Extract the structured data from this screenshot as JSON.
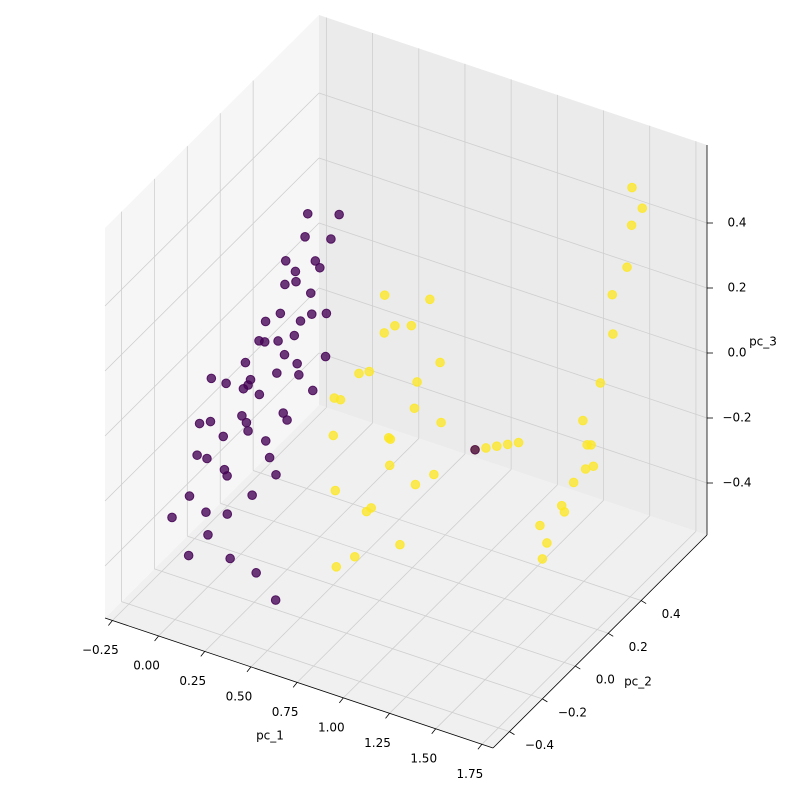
{
  "chart_data": {
    "type": "scatter3d",
    "xlabel": "pc_1",
    "ylabel": "pc_2",
    "zlabel": "pc_3",
    "xlim": [
      -0.29,
      1.81
    ],
    "ylim": [
      -0.5,
      0.8
    ],
    "zlim": [
      -0.56,
      0.64
    ],
    "xticks": [
      {
        "value": -0.25,
        "label": "−0.25"
      },
      {
        "value": 0,
        "label": "0.00"
      },
      0.25,
      {
        "value": 0.5,
        "label": "0.50"
      },
      0.75,
      {
        "value": 1,
        "label": "1.00"
      },
      1.25,
      {
        "value": 1.5,
        "label": "1.50"
      },
      1.75
    ],
    "yticks": [
      {
        "value": -0.4,
        "label": "−0.4"
      },
      {
        "value": -0.2,
        "label": "−0.2"
      },
      {
        "value": 0,
        "label": "0.0"
      },
      0.2,
      0.4
    ],
    "zticks": [
      {
        "value": -0.4,
        "label": "−0.4"
      },
      {
        "value": -0.2,
        "label": "−0.2"
      },
      {
        "value": 0,
        "label": "0.0"
      },
      0.2,
      0.4
    ],
    "grid": true,
    "series": [
      {
        "color": "#440154",
        "x": [
          -0.1,
          -0.05,
          0.0,
          0.05,
          0.1,
          0.15,
          0.2,
          0.25,
          -0.12,
          -0.08,
          -0.02,
          0.04,
          0.08,
          0.12,
          0.18,
          0.22,
          -0.15,
          -0.1,
          -0.05,
          0.0,
          0.06,
          0.1,
          0.15,
          0.2,
          0.25,
          0.28,
          -0.14,
          -0.08,
          0.02,
          0.08,
          0.14,
          0.18,
          0.0,
          0.06,
          0.12,
          -0.06,
          -0.12,
          0.03,
          0.09,
          0.16,
          0.24,
          0.3,
          -0.03,
          0.07,
          0.13,
          0.2,
          -0.09,
          0.01,
          0.26,
          0.11,
          -0.13,
          0.04,
          0.19,
          0.22,
          0.05,
          -0.16,
          0.35,
          0.5,
          1.0
        ],
        "y": [
          -0.2,
          -0.15,
          -0.1,
          -0.05,
          0.0,
          0.05,
          0.1,
          0.15,
          -0.05,
          0.0,
          0.05,
          0.1,
          0.15,
          0.2,
          0.25,
          0.3,
          -0.25,
          -0.1,
          0.1,
          0.15,
          0.2,
          0.25,
          -0.1,
          -0.05,
          0.0,
          0.2,
          0.05,
          0.2,
          0.25,
          0.3,
          0.1,
          0.15,
          -0.2,
          -0.15,
          -0.2,
          -0.25,
          0.15,
          0.0,
          0.05,
          0.3,
          0.25,
          0.1,
          -0.05,
          -0.02,
          0.08,
          0.2,
          -0.15,
          0.32,
          0.05,
          -0.08,
          -0.12,
          0.22,
          0.0,
          0.35,
          0.35,
          0.0,
          -0.3,
          -0.35,
          0.3
        ],
        "z": [
          -0.3,
          -0.2,
          -0.25,
          -0.1,
          -0.05,
          0.0,
          0.1,
          0.15,
          -0.15,
          -0.05,
          0.0,
          0.05,
          0.12,
          0.2,
          0.25,
          0.3,
          -0.35,
          -0.4,
          -0.1,
          0.08,
          0.18,
          0.05,
          -0.3,
          -0.2,
          -0.1,
          0.0,
          -0.25,
          -0.02,
          0.22,
          0.28,
          -0.15,
          -0.05,
          -0.4,
          -0.35,
          -0.45,
          -0.45,
          -0.15,
          -0.15,
          -0.22,
          0.2,
          0.1,
          -0.05,
          -0.3,
          0.0,
          0.08,
          0.18,
          -0.1,
          0.15,
          0.05,
          -0.12,
          -0.22,
          -0.05,
          -0.28,
          0.35,
          0.32,
          -0.05,
          -0.4,
          -0.43,
          -0.2
        ]
      },
      {
        "color": "#fde725",
        "x": [
          0.5,
          0.55,
          0.6,
          0.65,
          0.7,
          0.75,
          0.8,
          0.85,
          0.9,
          0.95,
          1.0,
          0.6,
          0.7,
          0.75,
          0.8,
          0.85,
          0.65,
          0.9,
          0.55,
          0.72,
          0.95,
          0.45,
          0.68,
          0.82,
          0.58,
          1.0,
          1.05,
          1.1,
          1.15,
          1.2,
          1.3,
          1.35,
          1.4,
          1.45,
          1.5,
          1.55,
          1.6,
          1.6,
          1.45,
          1.38,
          1.32,
          1.52,
          1.28,
          1.48,
          1.58,
          1.42,
          1.5,
          1.62
        ],
        "y": [
          0.0,
          0.1,
          -0.1,
          0.05,
          0.15,
          -0.05,
          0.0,
          0.1,
          0.2,
          -0.1,
          0.05,
          0.2,
          0.25,
          -0.15,
          0.25,
          -0.05,
          -0.15,
          0.05,
          -0.05,
          0.1,
          0.15,
          0.1,
          0.0,
          0.15,
          0.22,
          0.3,
          0.31,
          0.32,
          0.33,
          0.34,
          0.4,
          0.45,
          0.45,
          0.5,
          0.5,
          0.52,
          0.55,
          0.58,
          0.45,
          0.4,
          0.35,
          0.55,
          0.38,
          0.48,
          0.6,
          0.5,
          0.42,
          0.62
        ],
        "z": [
          -0.1,
          0.05,
          -0.2,
          0.1,
          0.2,
          -0.25,
          -0.05,
          0.0,
          0.1,
          -0.3,
          -0.15,
          0.25,
          0.15,
          -0.35,
          0.25,
          -0.1,
          -0.4,
          -0.2,
          0.05,
          -0.12,
          -0.05,
          -0.05,
          -0.3,
          0.05,
          0.12,
          -0.2,
          -0.19,
          -0.18,
          -0.17,
          -0.16,
          -0.48,
          -0.4,
          -0.3,
          -0.2,
          0.0,
          0.15,
          0.35,
          0.58,
          -0.1,
          -0.35,
          -0.5,
          0.25,
          -0.42,
          -0.25,
          0.45,
          -0.28,
          -0.15,
          0.5
        ]
      }
    ]
  }
}
